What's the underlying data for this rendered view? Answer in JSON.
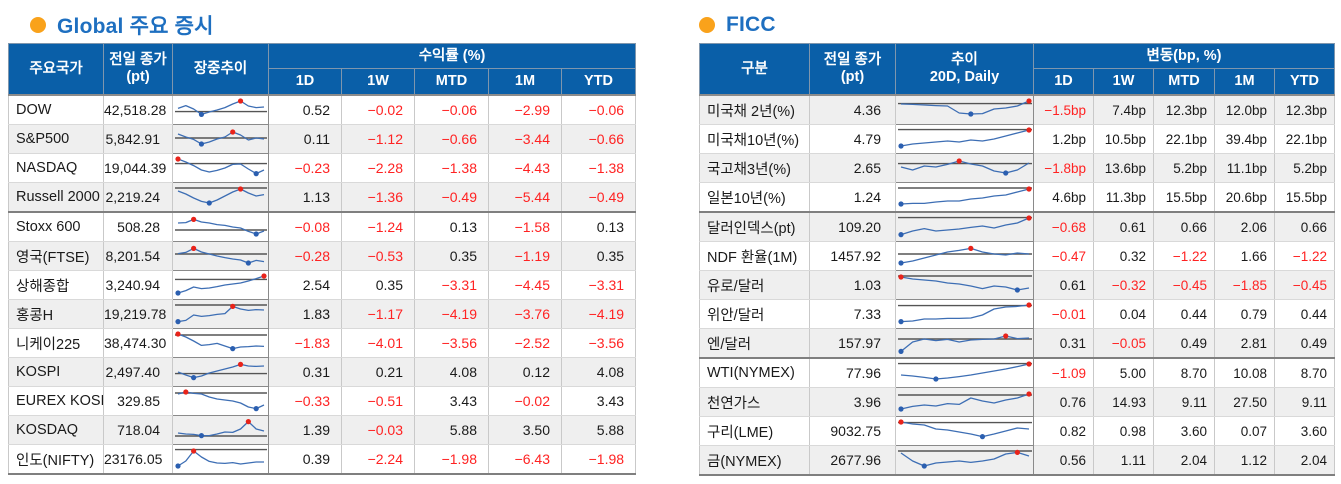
{
  "colors": {
    "header_bg": "#0A5FA8",
    "title_blue": "#1E6FC0",
    "bullet_orange": "#F9A21B",
    "negative_red": "#FF2222",
    "stripe_gray": "#EFEFEF",
    "spark_line_blue": "#3D6EB4",
    "spark_dot_max_red": "#E8231A",
    "spark_dot_min_blue": "#2B5FB0"
  },
  "left_table": {
    "title": "Global 주요 증시",
    "headers": {
      "name": "주요국가",
      "close_line1": "전일 종가",
      "close_line2": "(pt)",
      "trend_line1": "장중추이",
      "trend_line2": "",
      "group": "수익률 (%)",
      "sub": [
        "1D",
        "1W",
        "MTD",
        "1M",
        "YTD"
      ]
    },
    "rows": [
      {
        "name": "DOW",
        "close": "42,518.28",
        "values": [
          "0.52",
          "−0.02",
          "−0.06",
          "−2.99",
          "−0.06"
        ],
        "sep": false,
        "spark": {
          "points": [
            0.58,
            0.72,
            0.55,
            0.28,
            0.4,
            0.5,
            0.62,
            0.8,
            0.95,
            0.7,
            0.62,
            0.65
          ],
          "ref": 0.42
        }
      },
      {
        "name": "S&P500",
        "close": "5,842.91",
        "values": [
          "0.11",
          "−1.12",
          "−0.66",
          "−3.44",
          "−0.66"
        ],
        "sep": false,
        "spark": {
          "points": [
            0.75,
            0.6,
            0.48,
            0.25,
            0.35,
            0.5,
            0.6,
            0.85,
            0.7,
            0.45,
            0.55,
            0.5
          ],
          "ref": 0.55
        }
      },
      {
        "name": "NASDAQ",
        "close": "19,044.39",
        "values": [
          "−0.23",
          "−2.28",
          "−1.38",
          "−4.43",
          "−1.38"
        ],
        "sep": false,
        "spark": {
          "points": [
            0.95,
            0.8,
            0.62,
            0.4,
            0.3,
            0.38,
            0.5,
            0.68,
            0.7,
            0.45,
            0.22,
            0.4
          ],
          "ref": 0.72
        }
      },
      {
        "name": "Russell 2000",
        "close": "2,219.24",
        "values": [
          "1.13",
          "−1.36",
          "−0.49",
          "−5.44",
          "−0.49"
        ],
        "sep": true,
        "spark": {
          "points": [
            0.8,
            0.65,
            0.45,
            0.28,
            0.2,
            0.35,
            0.55,
            0.75,
            0.9,
            0.7,
            0.55,
            0.62
          ],
          "ref": 0.95
        }
      },
      {
        "name": "Stoxx 600",
        "close": "508.28",
        "values": [
          "−0.08",
          "−1.24",
          "0.13",
          "−1.58",
          "0.13"
        ],
        "sep": false,
        "spark": {
          "points": [
            0.7,
            0.72,
            0.88,
            0.75,
            0.7,
            0.62,
            0.58,
            0.5,
            0.45,
            0.28,
            0.15,
            0.3
          ],
          "ref": 0.35
        }
      },
      {
        "name": "영국(FTSE)",
        "close": "8,201.54",
        "values": [
          "−0.28",
          "−0.53",
          "0.35",
          "−1.19",
          "0.35"
        ],
        "sep": false,
        "spark": {
          "points": [
            0.62,
            0.68,
            0.88,
            0.7,
            0.6,
            0.5,
            0.42,
            0.35,
            0.3,
            0.15,
            0.28,
            0.22
          ],
          "ref": 0.6
        }
      },
      {
        "name": "상해종합",
        "close": "3,240.94",
        "values": [
          "2.54",
          "0.35",
          "−3.31",
          "−4.45",
          "−3.31"
        ],
        "sep": false,
        "spark": {
          "points": [
            0.1,
            0.22,
            0.4,
            0.32,
            0.35,
            0.42,
            0.5,
            0.55,
            0.6,
            0.7,
            0.82,
            0.95
          ],
          "ref": 0.78
        }
      },
      {
        "name": "홍콩H",
        "close": "19,219.78",
        "values": [
          "1.83",
          "−1.17",
          "−4.19",
          "−3.76",
          "−4.19"
        ],
        "sep": false,
        "spark": {
          "points": [
            0.12,
            0.18,
            0.45,
            0.38,
            0.42,
            0.48,
            0.52,
            0.88,
            0.75,
            0.68,
            0.72,
            0.7
          ],
          "ref": 0.95
        }
      },
      {
        "name": "니케이225",
        "close": "38,474.30",
        "values": [
          "−1.83",
          "−4.01",
          "−3.56",
          "−2.52",
          "−3.56"
        ],
        "sep": false,
        "spark": {
          "points": [
            0.95,
            0.8,
            0.6,
            0.38,
            0.42,
            0.48,
            0.35,
            0.22,
            0.3,
            0.32,
            0.35,
            0.33
          ],
          "ref": 0.9
        }
      },
      {
        "name": "KOSPI",
        "close": "2,497.40",
        "values": [
          "0.31",
          "0.21",
          "4.08",
          "0.12",
          "4.08"
        ],
        "sep": false,
        "spark": {
          "points": [
            0.5,
            0.35,
            0.22,
            0.3,
            0.45,
            0.55,
            0.65,
            0.75,
            0.88,
            0.8,
            0.78,
            0.8
          ],
          "ref": 0.42
        }
      },
      {
        "name": "EUREX KOSPI200",
        "close": "329.85",
        "values": [
          "−0.33",
          "−0.51",
          "3.43",
          "−0.02",
          "3.43"
        ],
        "sep": false,
        "spark": {
          "points": [
            0.85,
            0.95,
            0.88,
            0.85,
            0.7,
            0.6,
            0.55,
            0.5,
            0.4,
            0.2,
            0.12,
            0.3
          ],
          "ref": 0.9
        }
      },
      {
        "name": "KOSDAQ",
        "close": "718.04",
        "values": [
          "1.39",
          "−0.03",
          "5.88",
          "3.50",
          "5.88"
        ],
        "sep": false,
        "spark": {
          "points": [
            0.35,
            0.3,
            0.28,
            0.22,
            0.22,
            0.3,
            0.4,
            0.38,
            0.55,
            0.92,
            0.55,
            0.45
          ],
          "ref": 0.2
        }
      },
      {
        "name": "인도(NIFTY)",
        "close": "23176.05",
        "values": [
          "0.39",
          "−2.24",
          "−1.98",
          "−6.43",
          "−1.98"
        ],
        "sep": false,
        "spark": {
          "points": [
            0.15,
            0.4,
            0.9,
            0.6,
            0.38,
            0.3,
            0.28,
            0.32,
            0.25,
            0.3,
            0.35,
            0.35
          ],
          "ref": 0.97
        }
      }
    ]
  },
  "right_table": {
    "title": "FICC",
    "headers": {
      "name": "구분",
      "close_line1": "전일 종가",
      "close_line2": "(pt)",
      "trend_line1": "추이",
      "trend_line2": "20D, Daily",
      "group": "변동(bp, %)",
      "sub": [
        "1D",
        "1W",
        "MTD",
        "1M",
        "YTD"
      ]
    },
    "rows": [
      {
        "name": "미국채 2년(%)",
        "close": "4.36",
        "values": [
          "−1.5bp",
          "7.4bp",
          "12.3bp",
          "12.0bp",
          "12.3bp"
        ],
        "sep": false,
        "spark": {
          "points": [
            0.8,
            0.78,
            0.75,
            0.72,
            0.7,
            0.35,
            0.3,
            0.32,
            0.55,
            0.6,
            0.7,
            0.95
          ],
          "ref": 0.82
        }
      },
      {
        "name": "미국채10년(%)",
        "close": "4.79",
        "values": [
          "1.2bp",
          "10.5bp",
          "22.1bp",
          "39.4bp",
          "22.1bp"
        ],
        "sep": false,
        "spark": {
          "points": [
            0.15,
            0.25,
            0.3,
            0.35,
            0.4,
            0.35,
            0.45,
            0.4,
            0.5,
            0.65,
            0.8,
            0.95
          ],
          "ref": 0.97
        }
      },
      {
        "name": "국고채3년(%)",
        "close": "2.65",
        "values": [
          "−1.8bp",
          "13.6bp",
          "5.2bp",
          "11.1bp",
          "5.2bp"
        ],
        "sep": false,
        "spark": {
          "points": [
            0.55,
            0.4,
            0.6,
            0.55,
            0.68,
            0.85,
            0.7,
            0.6,
            0.35,
            0.25,
            0.4,
            0.75
          ],
          "ref": 0.72
        }
      },
      {
        "name": "일본10년(%)",
        "close": "1.24",
        "values": [
          "4.6bp",
          "11.3bp",
          "15.5bp",
          "20.6bp",
          "15.5bp"
        ],
        "sep": true,
        "spark": {
          "points": [
            0.15,
            0.18,
            0.18,
            0.25,
            0.3,
            0.3,
            0.4,
            0.45,
            0.55,
            0.6,
            0.75,
            0.9
          ],
          "ref": 0.95
        }
      },
      {
        "name": "달러인덱스(pt)",
        "close": "109.20",
        "values": [
          "−0.68",
          "0.61",
          "0.66",
          "2.06",
          "0.66"
        ],
        "sep": false,
        "spark": {
          "points": [
            0.12,
            0.3,
            0.42,
            0.3,
            0.35,
            0.4,
            0.48,
            0.55,
            0.45,
            0.6,
            0.7,
            0.95
          ],
          "ref": 0.97
        }
      },
      {
        "name": "NDF 환율(1M)",
        "close": "1457.92",
        "values": [
          "−0.47",
          "0.32",
          "−1.22",
          "1.66",
          "−1.22"
        ],
        "sep": false,
        "spark": {
          "points": [
            0.15,
            0.25,
            0.4,
            0.55,
            0.7,
            0.78,
            0.88,
            0.7,
            0.6,
            0.55,
            0.65,
            0.6
          ],
          "ref": 0.6
        }
      },
      {
        "name": "유로/달러",
        "close": "1.03",
        "values": [
          "0.61",
          "−0.32",
          "−0.45",
          "−1.85",
          "−0.45"
        ],
        "sep": false,
        "spark": {
          "points": [
            0.9,
            0.8,
            0.75,
            0.7,
            0.6,
            0.55,
            0.45,
            0.32,
            0.45,
            0.4,
            0.25,
            0.35
          ],
          "ref": 0.95
        }
      },
      {
        "name": "위안/달러",
        "close": "7.33",
        "values": [
          "−0.01",
          "0.04",
          "0.44",
          "0.79",
          "0.44"
        ],
        "sep": false,
        "spark": {
          "points": [
            0.12,
            0.15,
            0.25,
            0.25,
            0.28,
            0.28,
            0.3,
            0.45,
            0.75,
            0.85,
            0.88,
            0.95
          ],
          "ref": 0.92
        }
      },
      {
        "name": "엔/달러",
        "close": "157.97",
        "values": [
          "0.31",
          "−0.05",
          "0.49",
          "2.81",
          "0.49"
        ],
        "sep": true,
        "spark": {
          "points": [
            0.08,
            0.55,
            0.7,
            0.62,
            0.68,
            0.55,
            0.65,
            0.68,
            0.7,
            0.85,
            0.72,
            0.75
          ],
          "ref": 0.7
        }
      },
      {
        "name": "WTI(NYMEX)",
        "close": "77.96",
        "values": [
          "−1.09",
          "5.00",
          "8.70",
          "10.08",
          "8.70"
        ],
        "sep": false,
        "spark": {
          "points": [
            0.4,
            0.35,
            0.28,
            0.2,
            0.25,
            0.32,
            0.4,
            0.5,
            0.6,
            0.7,
            0.82,
            0.95
          ],
          "ref": 0.97
        }
      },
      {
        "name": "천연가스",
        "close": "3.96",
        "values": [
          "0.76",
          "14.93",
          "9.11",
          "27.50",
          "9.11"
        ],
        "sep": false,
        "spark": {
          "points": [
            0.15,
            0.28,
            0.35,
            0.3,
            0.42,
            0.38,
            0.7,
            0.55,
            0.45,
            0.6,
            0.7,
            0.9
          ],
          "ref": 0.85
        }
      },
      {
        "name": "구리(LME)",
        "close": "9032.75",
        "values": [
          "0.82",
          "0.98",
          "3.60",
          "0.07",
          "3.60"
        ],
        "sep": false,
        "spark": {
          "points": [
            0.95,
            0.85,
            0.8,
            0.6,
            0.55,
            0.45,
            0.35,
            0.22,
            0.35,
            0.5,
            0.65,
            0.6
          ],
          "ref": 0.92
        }
      },
      {
        "name": "금(NYMEX)",
        "close": "2677.96",
        "values": [
          "0.56",
          "1.11",
          "2.04",
          "1.12",
          "2.04"
        ],
        "sep": false,
        "spark": {
          "points": [
            0.85,
            0.45,
            0.2,
            0.35,
            0.4,
            0.45,
            0.38,
            0.45,
            0.55,
            0.8,
            0.88,
            0.7
          ],
          "ref": 0.95
        }
      }
    ]
  }
}
